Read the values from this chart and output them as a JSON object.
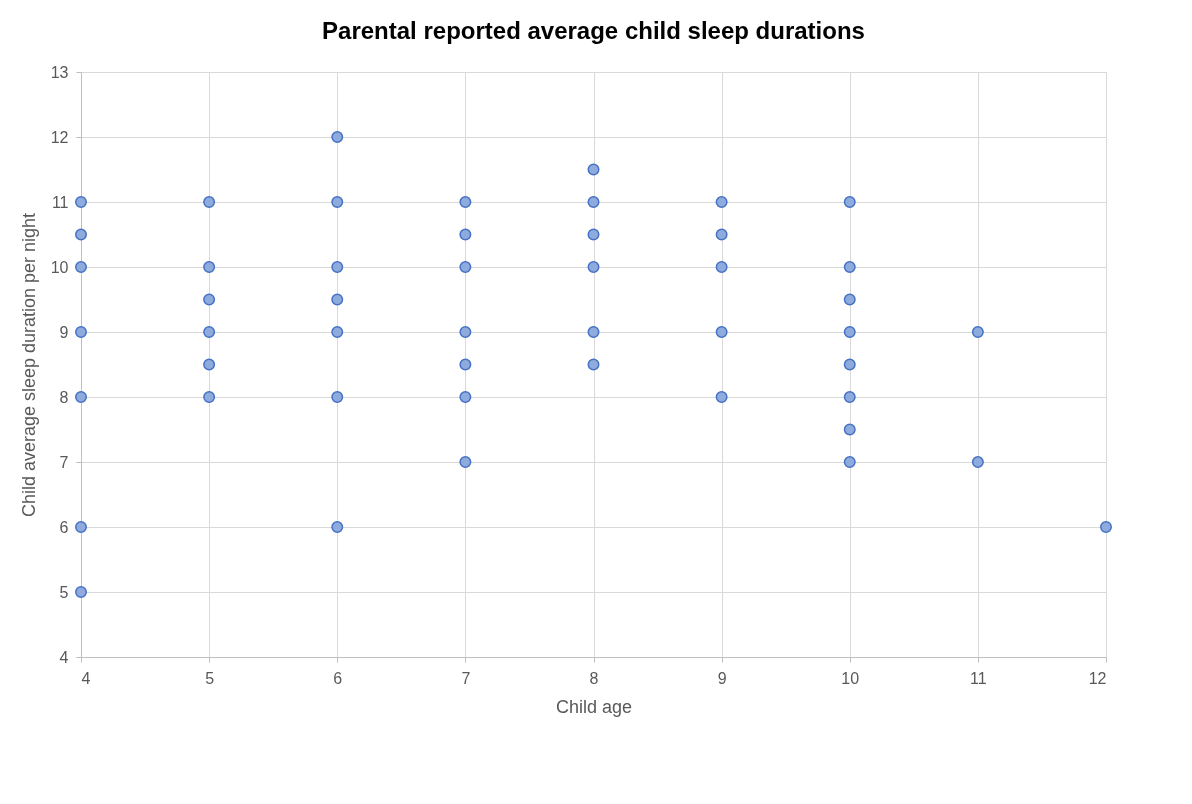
{
  "chart_data": {
    "type": "scatter",
    "title": "Parental reported average child sleep durations",
    "xlabel": "Child age",
    "ylabel": "Child average sleep duration per night",
    "x": [
      4,
      4,
      4,
      4,
      4,
      4,
      4,
      5,
      5,
      5,
      5,
      5,
      5,
      6,
      6,
      6,
      6,
      6,
      6,
      6,
      7,
      7,
      7,
      7,
      7,
      7,
      7,
      8,
      8,
      8,
      8,
      8,
      8,
      9,
      9,
      9,
      9,
      9,
      10,
      10,
      10,
      10,
      10,
      10,
      10,
      10,
      11,
      11,
      12
    ],
    "series": [
      {
        "color": "#8faadc",
        "values": [
          11,
          10.5,
          10,
          9,
          8,
          6,
          5,
          11,
          10,
          9.5,
          9,
          8.5,
          8,
          12,
          11,
          10,
          9.5,
          9,
          8,
          6,
          11,
          10.5,
          10,
          9,
          8.5,
          8,
          7,
          11.5,
          11,
          10.5,
          10,
          9,
          8.5,
          11,
          10.5,
          10,
          9,
          8,
          11,
          10,
          9.5,
          9,
          8.5,
          8,
          7.5,
          7,
          9,
          7,
          6
        ]
      }
    ],
    "xlim": [
      4,
      12
    ],
    "xticks": [
      4,
      5,
      6,
      7,
      8,
      9,
      10,
      11,
      12
    ],
    "ylim": [
      4,
      13
    ],
    "yticks": [
      4,
      5,
      6,
      7,
      8,
      9,
      10,
      11,
      12,
      13
    ],
    "grid": true,
    "marker": "circle",
    "legend": false
  }
}
